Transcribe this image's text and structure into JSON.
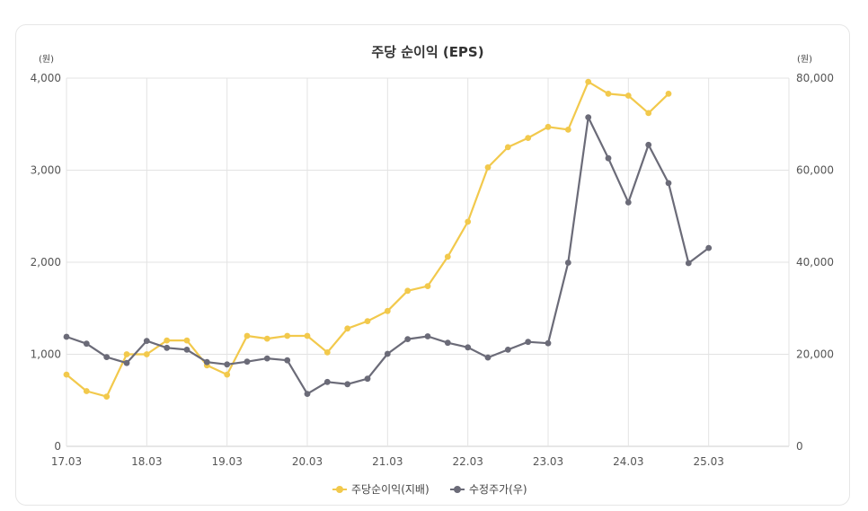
{
  "chart_data": {
    "type": "line",
    "title": "주당 순이익 (EPS)",
    "y_left_unit": "(원)",
    "y_right_unit": "(원)",
    "y_left_ticks": [
      "4,000",
      "3,000",
      "2,000",
      "1,000",
      "0"
    ],
    "y_right_ticks": [
      "80,000",
      "60,000",
      "40,000",
      "20,000",
      "0"
    ],
    "ylim_left": [
      0,
      4000
    ],
    "ylim_right": [
      0,
      80000
    ],
    "x_tick_labels": [
      "17.03",
      "18.03",
      "19.03",
      "20.03",
      "21.03",
      "22.03",
      "23.03",
      "24.03",
      "25.03"
    ],
    "xlim": [
      2017.0,
      2026.0
    ],
    "grid": true,
    "legend_position": "bottom",
    "series": [
      {
        "name": "주당순이익(지배)",
        "axis": "left",
        "color": "#f2c94c",
        "x": [
          2017.0,
          2017.25,
          2017.5,
          2017.75,
          2018.0,
          2018.25,
          2018.5,
          2018.75,
          2019.0,
          2019.25,
          2019.5,
          2019.75,
          2020.0,
          2020.25,
          2020.5,
          2020.75,
          2021.0,
          2021.25,
          2021.5,
          2021.75,
          2022.0,
          2022.25,
          2022.5,
          2022.75,
          2023.0,
          2023.25,
          2023.5,
          2023.75,
          2024.0,
          2024.25,
          2024.5
        ],
        "values": [
          780,
          600,
          540,
          1000,
          1000,
          1150,
          1150,
          880,
          780,
          1200,
          1170,
          1200,
          1200,
          1020,
          1280,
          1360,
          1470,
          1690,
          1740,
          2060,
          2440,
          3030,
          3250,
          3350,
          3470,
          3440,
          3960,
          3830,
          3810,
          3620,
          3830
        ]
      },
      {
        "name": "수정주가(우)",
        "axis": "right",
        "color": "#6b6b78",
        "x": [
          2017.0,
          2017.25,
          2017.5,
          2017.75,
          2018.0,
          2018.25,
          2018.5,
          2018.75,
          2019.0,
          2019.25,
          2019.5,
          2019.75,
          2020.0,
          2020.25,
          2020.5,
          2020.75,
          2021.0,
          2021.25,
          2021.5,
          2021.75,
          2022.0,
          2022.25,
          2022.5,
          2022.75,
          2023.0,
          2023.25,
          2023.5,
          2023.75,
          2024.0,
          2024.25,
          2024.5,
          2024.75,
          2025.0
        ],
        "values": [
          23800,
          22300,
          19400,
          18100,
          22900,
          21400,
          21000,
          18300,
          17800,
          18400,
          19100,
          18700,
          11400,
          14000,
          13500,
          14700,
          20100,
          23300,
          23900,
          22500,
          21500,
          19300,
          21000,
          22700,
          22400,
          39900,
          71500,
          62600,
          53000,
          65500,
          57200,
          39800,
          43100
        ]
      }
    ]
  }
}
